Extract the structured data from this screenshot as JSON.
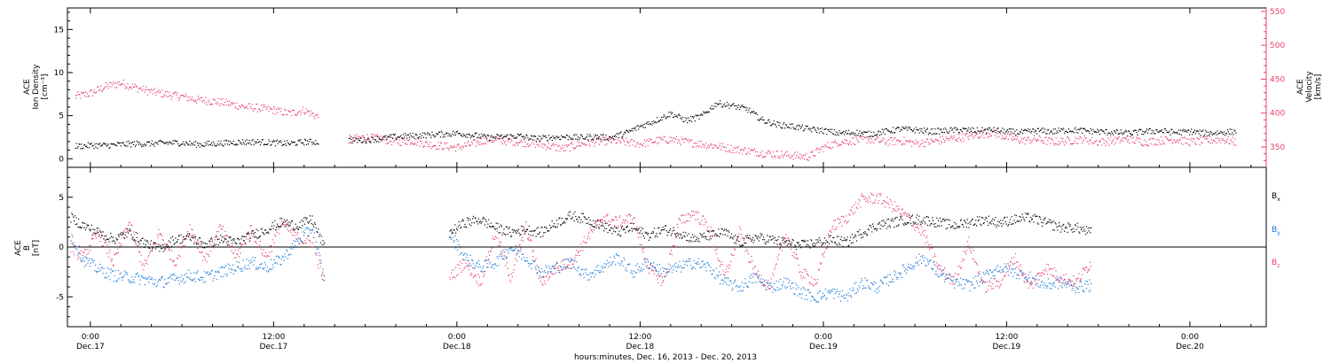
{
  "xaxis": {
    "title": "hours:minutes, Dec. 16, 2013 - Dec. 20, 2013",
    "ticks": [
      {
        "time": "0:00",
        "date": "Dec.17",
        "hours": 24
      },
      {
        "time": "12:00",
        "date": "Dec.17",
        "hours": 36
      },
      {
        "time": "0:00",
        "date": "Dec.18",
        "hours": 48
      },
      {
        "time": "12:00",
        "date": "Dec.18",
        "hours": 60
      },
      {
        "time": "0:00",
        "date": "Dec.19",
        "hours": 72
      },
      {
        "time": "12:00",
        "date": "Dec.19",
        "hours": 84
      },
      {
        "time": "0:00",
        "date": "Dec.20",
        "hours": 96
      }
    ],
    "range_hours": [
      22.5,
      101
    ]
  },
  "colors": {
    "density": "#000000",
    "velocity": "#e8406a",
    "bx": "#000000",
    "by": "#1878d6",
    "bz": "#e8406a"
  },
  "chart_data": [
    {
      "type": "scatter",
      "ylabel": [
        "ACE",
        "Ion Density",
        "[cm⁻³]"
      ],
      "ylim": [
        -1,
        17.5
      ],
      "yticks": [
        0,
        5,
        10,
        15
      ],
      "y2label": [
        "ACE",
        "Velocity",
        "[km/s]"
      ],
      "y2lim": [
        320,
        555
      ],
      "y2ticks": [
        350,
        400,
        450,
        500,
        550
      ],
      "series": [
        {
          "name": "Ion Density",
          "axis": "left",
          "segments": [
            {
              "x": [
                23,
                24,
                25,
                26,
                27,
                28,
                29,
                30,
                31,
                32,
                33,
                34,
                35,
                36,
                37,
                38,
                38.9
              ],
              "y": [
                1.5,
                1.6,
                1.6,
                1.7,
                1.8,
                1.8,
                1.9,
                1.9,
                1.7,
                1.8,
                1.9,
                2,
                2,
                1.9,
                1.8,
                2,
                2
              ]
            },
            {
              "x": [
                40.9,
                42,
                43,
                44,
                45,
                46,
                47,
                48,
                49,
                50,
                51,
                52,
                53,
                54,
                55,
                56,
                57,
                58,
                59,
                60,
                61,
                62,
                63,
                64,
                65,
                66,
                67,
                68,
                69,
                70,
                71,
                72,
                73,
                74,
                75,
                76,
                77,
                78,
                79,
                80,
                81,
                82,
                83,
                84,
                85,
                86,
                87,
                88,
                89,
                90,
                91,
                92,
                93,
                94,
                95,
                96,
                97,
                98,
                99
              ],
              "y": [
                2.2,
                2.2,
                2.4,
                2.6,
                2.7,
                2.8,
                2.9,
                3,
                2.8,
                2.5,
                2.6,
                2.7,
                2.4,
                2.5,
                2.6,
                2.5,
                2.6,
                2.5,
                3,
                3.8,
                4.5,
                5.3,
                4.5,
                5,
                6.5,
                6.2,
                5.8,
                4.5,
                4,
                3.8,
                3.5,
                3.3,
                3,
                3.1,
                2.9,
                3.2,
                3.5,
                3.4,
                3.2,
                3.3,
                3.4,
                3.3,
                3.4,
                3.2,
                3.1,
                3.3,
                3.2,
                3.4,
                3.3,
                3.2,
                3.1,
                3.0,
                3.2,
                3.3,
                3.1,
                3.2,
                3.0,
                3.1,
                3.2
              ]
            }
          ]
        },
        {
          "name": "Velocity",
          "axis": "right",
          "segments": [
            {
              "x": [
                23,
                24,
                25,
                26,
                27,
                28,
                29,
                30,
                31,
                32,
                33,
                34,
                35,
                36,
                37,
                38,
                38.9
              ],
              "y": [
                425,
                430,
                440,
                445,
                438,
                432,
                428,
                425,
                420,
                418,
                415,
                410,
                408,
                405,
                400,
                405,
                395
              ]
            },
            {
              "x": [
                40.9,
                42,
                43,
                44,
                45,
                46,
                47,
                48,
                49,
                50,
                51,
                52,
                53,
                54,
                55,
                56,
                57,
                58,
                59,
                60,
                61,
                62,
                63,
                64,
                65,
                66,
                67,
                68,
                69,
                70,
                71,
                72,
                73,
                74,
                75,
                76,
                77,
                78,
                79,
                80,
                81,
                82,
                83,
                84,
                85,
                86,
                87,
                88,
                89,
                90,
                91,
                92,
                93,
                94,
                95,
                96,
                97,
                98,
                99
              ],
              "y": [
                362,
                365,
                363,
                358,
                360,
                355,
                352,
                350,
                355,
                362,
                360,
                358,
                356,
                352,
                348,
                355,
                358,
                360,
                358,
                355,
                360,
                362,
                358,
                355,
                352,
                348,
                345,
                342,
                340,
                338,
                336,
                350,
                358,
                360,
                362,
                358,
                360,
                356,
                358,
                362,
                365,
                368,
                372,
                365,
                360,
                362,
                358,
                360,
                362,
                358,
                360,
                362,
                358,
                360,
                362,
                358,
                360,
                362,
                358
              ]
            }
          ]
        }
      ]
    },
    {
      "type": "scatter",
      "ylabel": [
        "ACE",
        "B",
        "[nT]"
      ],
      "ylim": [
        -8,
        8
      ],
      "yticks": [
        -5,
        0,
        5
      ],
      "series": [
        {
          "name": "Bx",
          "label_main": "B",
          "label_sub": "x",
          "segments": [
            {
              "x": [
                22.7,
                23.5,
                24.5,
                25.5,
                26.5,
                27.5,
                28.5,
                29.5,
                30.5,
                31.5,
                32.5,
                33.5,
                34.5,
                35.5,
                36.5,
                37.5,
                38.5,
                39.3
              ],
              "y": [
                3,
                2.2,
                1.5,
                0.8,
                1.5,
                0.5,
                -0.2,
                0.8,
                1,
                0.3,
                0.8,
                0.5,
                1.2,
                1.8,
                2.5,
                2.2,
                2.8,
                0
              ]
            },
            {
              "x": [
                47.5,
                48.5,
                49.5,
                50.5,
                51.5,
                52.5,
                53.5,
                54.5,
                55.5,
                56.5,
                57.5,
                58.5,
                59.5,
                60.5,
                61.5,
                62.5,
                63.5,
                64.5,
                65.5,
                66.5,
                67.5,
                68.5,
                69.5,
                70.5,
                71.5,
                72.5,
                73.5,
                74.5,
                75.5,
                76.5,
                77.5,
                78.5,
                79.5,
                80.5,
                81.5,
                82.5,
                83.5,
                84.5,
                85.5,
                86.5,
                87.5,
                88.5,
                89.5
              ],
              "y": [
                1.5,
                2.5,
                2.8,
                2,
                1.5,
                1.8,
                1.5,
                2.5,
                3.2,
                2.8,
                2.2,
                1.5,
                2,
                1.2,
                1.8,
                1.5,
                0.8,
                1.2,
                1.5,
                0.5,
                1,
                0.8,
                0.5,
                0.2,
                0.5,
                0.8,
                0.5,
                1.5,
                2.2,
                2.5,
                2.8,
                2.8,
                2.5,
                2.2,
                2.5,
                2.8,
                2.5,
                2.8,
                3,
                2.5,
                2,
                2,
                1.5
              ]
            }
          ]
        },
        {
          "name": "By",
          "label_main": "B",
          "label_sub": "y",
          "segments": [
            {
              "x": [
                22.7,
                23.5,
                24.5,
                25.5,
                26.5,
                27.5,
                28.5,
                29.5,
                30.5,
                31.5,
                32.5,
                33.5,
                34.5,
                35.5,
                36.5,
                37.5,
                38.5,
                39.3
              ],
              "y": [
                1.2,
                -1.2,
                -2.2,
                -2.8,
                -3,
                -3.2,
                -3.5,
                -3.2,
                -2.8,
                -3,
                -2.5,
                -2,
                -1.5,
                -2,
                -1.2,
                0.5,
                2,
                -3.2
              ]
            },
            {
              "x": [
                47.5,
                48.5,
                49.5,
                50.5,
                51.5,
                52.5,
                53.5,
                54.5,
                55.5,
                56.5,
                57.5,
                58.5,
                59.5,
                60.5,
                61.5,
                62.5,
                63.5,
                64.5,
                65.5,
                66.5,
                67.5,
                68.5,
                69.5,
                70.5,
                71.5,
                72.5,
                73.5,
                74.5,
                75.5,
                76.5,
                77.5,
                78.5,
                79.5,
                80.5,
                81.5,
                82.5,
                83.5,
                84.5,
                85.5,
                86.5,
                87.5,
                88.5,
                89.5
              ],
              "y": [
                1.5,
                -1,
                -2,
                -1.5,
                0,
                -1,
                -2.5,
                -2,
                -1.5,
                -2.8,
                -2,
                -1,
                -2.5,
                -1.5,
                -2.5,
                -2,
                -1.5,
                -2,
                -3.5,
                -4,
                -3,
                -4,
                -3.5,
                -4.5,
                -5,
                -4.5,
                -5,
                -3.5,
                -4,
                -3,
                -2,
                -1,
                -2.5,
                -3.5,
                -3.8,
                -3,
                -2,
                -2.5,
                -3,
                -3.8,
                -3.5,
                -4,
                -3.8
              ]
            }
          ]
        },
        {
          "name": "Bz",
          "label_main": "B",
          "label_sub": "z",
          "segments": [
            {
              "x": [
                22.7,
                23.5,
                24.5,
                25.5,
                26.5,
                27.5,
                28.5,
                29.5,
                30.5,
                31.5,
                32.5,
                33.5,
                34.5,
                35.5,
                36.5,
                37.5,
                38.5,
                39.3
              ],
              "y": [
                0,
                -1,
                1.5,
                -1.5,
                2.5,
                -2,
                1.5,
                -1.5,
                2,
                -1.2,
                2,
                -1,
                1.8,
                -1,
                2.5,
                1,
                0.5,
                -3.5
              ]
            },
            {
              "x": [
                47.5,
                48.5,
                49.5,
                50.5,
                51.5,
                52.5,
                53.5,
                54.5,
                55.5,
                56.5,
                57.5,
                58.5,
                59.5,
                60.5,
                61.5,
                62.5,
                63.5,
                64.5,
                65.5,
                66.5,
                67.5,
                68.5,
                69.5,
                70.5,
                71.5,
                72.5,
                73.5,
                74.5,
                75.5,
                76.5,
                77.5,
                78.5,
                79.5,
                80.5,
                81.5,
                82.5,
                83.5,
                84.5,
                85.5,
                86.5,
                87.5,
                88.5,
                89.5
              ],
              "y": [
                -3,
                -1.5,
                -3.5,
                1.5,
                -3,
                2,
                -3.5,
                -2,
                -1.5,
                1,
                3,
                2.5,
                3,
                -2,
                -3.5,
                2.5,
                3.5,
                2,
                -3,
                1.5,
                -2.5,
                -4,
                1.5,
                -2.5,
                -3.5,
                2,
                3,
                4.8,
                5,
                4.2,
                3,
                1.5,
                -2,
                -3.5,
                0.5,
                -4,
                -3.5,
                -1,
                -4,
                -2,
                -3,
                -3.5,
                -1.5
              ]
            }
          ]
        }
      ]
    }
  ]
}
